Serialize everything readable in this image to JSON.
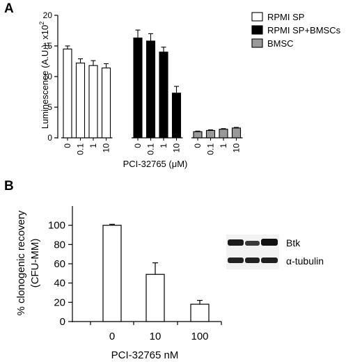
{
  "panels": {
    "a": {
      "letter": "A"
    },
    "b": {
      "letter": "B"
    }
  },
  "colors": {
    "rpmi_sp": "#ffffff",
    "rpmi_sp_bmscs": "#000000",
    "bmsc": "#999999",
    "stroke": "#000000"
  },
  "chart_data": [
    {
      "type": "bar",
      "title": "",
      "ylabel": "Luminescence (A.U.), x10",
      "ylabel_superscript": "2",
      "xlabel": "PCI-32765 (μM)",
      "ylim": [
        0,
        20
      ],
      "yticks": [
        "0",
        "5",
        "10",
        "15",
        "20"
      ],
      "legend_position": "top-right",
      "series": [
        {
          "name": "RPMI SP",
          "color": "#ffffff",
          "categories": [
            "0",
            "0.1",
            "1",
            "10"
          ],
          "values": [
            14.5,
            12.2,
            11.8,
            11.4
          ],
          "errors": [
            0.5,
            0.7,
            0.8,
            0.7
          ]
        },
        {
          "name": "RPMI SP+BMSCs",
          "color": "#000000",
          "categories": [
            "0",
            "0.1",
            "1",
            "10"
          ],
          "values": [
            16.3,
            15.8,
            14.0,
            7.3
          ],
          "errors": [
            1.3,
            1.2,
            0.8,
            1.1
          ]
        },
        {
          "name": "BMSC",
          "color": "#999999",
          "categories": [
            "0",
            "0.1",
            "1",
            "10"
          ],
          "values": [
            1.0,
            1.2,
            1.4,
            1.6
          ],
          "errors": [
            0.1,
            0.1,
            0.1,
            0.1
          ]
        }
      ]
    },
    {
      "type": "bar",
      "title": "",
      "ylabel_line1": "% clonogenic recovery",
      "ylabel_line2": "(CFU-MM)",
      "xlabel": "PCI-32765  nM",
      "ylim": [
        0,
        120
      ],
      "yticks": [
        "0",
        "20",
        "40",
        "60",
        "80",
        "100"
      ],
      "categories": [
        "0",
        "10",
        "100"
      ],
      "series": [
        {
          "color": "#ffffff",
          "values": [
            100,
            49,
            18
          ],
          "errors": [
            1,
            12,
            4
          ]
        }
      ]
    }
  ],
  "blot": {
    "labels": [
      "Btk",
      "α-tubulin"
    ]
  }
}
